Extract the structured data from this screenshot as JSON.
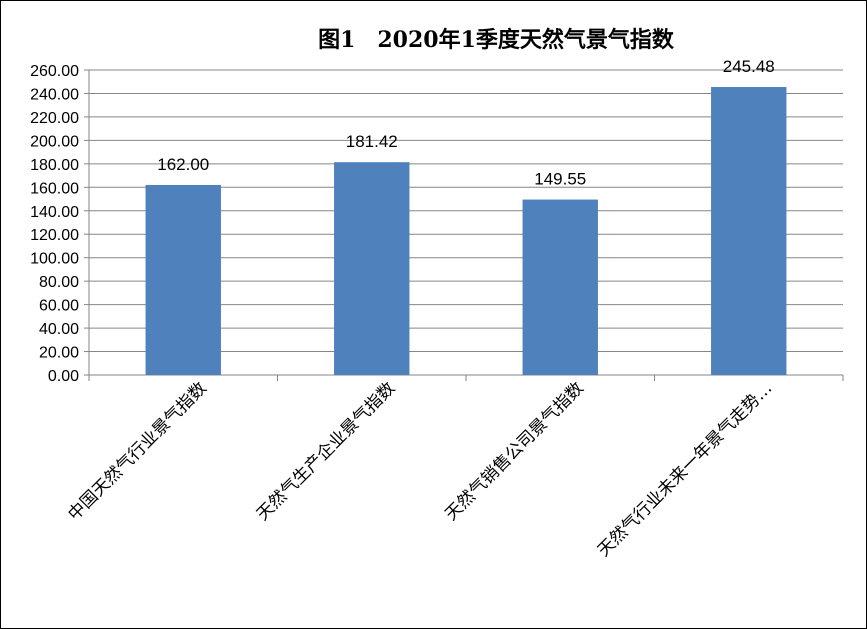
{
  "chart_data": {
    "type": "bar",
    "title": "图1　2020年1季度天然气景气指数",
    "categories": [
      "中国天然气行业景气指数",
      "天然气生产企业景气指数",
      "天然气销售公司景气指数",
      "天然气行业未来一年景气走势…"
    ],
    "values": [
      162.0,
      181.42,
      149.55,
      245.48
    ],
    "data_labels": [
      "162.00",
      "181.42",
      "149.55",
      "245.48"
    ],
    "y_ticks": [
      "0.00",
      "20.00",
      "40.00",
      "60.00",
      "80.00",
      "100.00",
      "120.00",
      "140.00",
      "160.00",
      "180.00",
      "200.00",
      "220.00",
      "240.00",
      "260.00"
    ],
    "ylim": [
      0,
      260
    ],
    "grid": true,
    "legend": "none",
    "bar_color": "#4F81BD",
    "grid_color": "#868686"
  }
}
